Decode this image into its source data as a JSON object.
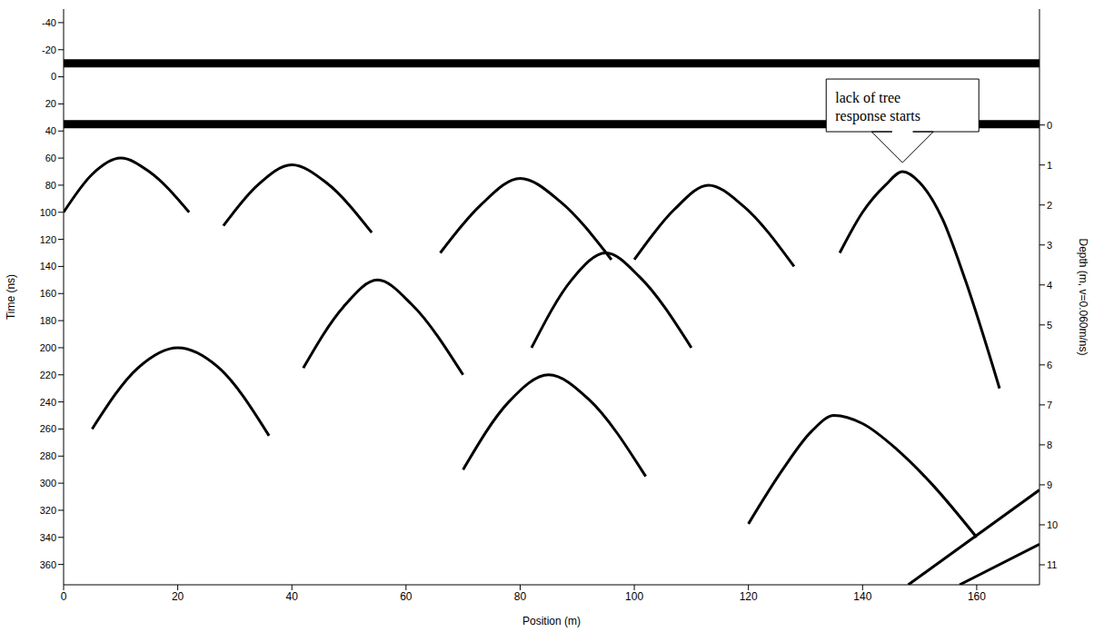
{
  "chart_data": {
    "type": "line",
    "x_label": "Position (m)",
    "y_label": "Time (ns)",
    "y2_label": "Depth (m, v=0.060m/ns)",
    "xlim": [
      0,
      171
    ],
    "xticks": [
      0,
      20,
      40,
      60,
      80,
      100,
      120,
      140,
      160
    ],
    "ylim": [
      -50,
      375
    ],
    "yticks": [
      -40,
      -20,
      0,
      20,
      40,
      60,
      80,
      100,
      120,
      140,
      160,
      180,
      200,
      220,
      240,
      260,
      280,
      300,
      320,
      340,
      360
    ],
    "y2lim": [
      -2.9,
      11.5
    ],
    "y2ticks": [
      0,
      1,
      2,
      3,
      4,
      5,
      6,
      7,
      8,
      9,
      10,
      11
    ],
    "grid": false,
    "annotations": [
      {
        "text": "lack of tree response starts",
        "x": 147,
        "y": 66
      }
    ],
    "series": [
      {
        "type": "band",
        "color": "#000000",
        "x": [
          0,
          171
        ],
        "values": [
          -10,
          -10
        ]
      },
      {
        "type": "band",
        "color": "#000000",
        "x": [
          0,
          171
        ],
        "values": [
          35,
          35
        ]
      },
      {
        "type": "line",
        "color": "#000000",
        "x": [
          136,
          140,
          144,
          147,
          150,
          154,
          158,
          164
        ],
        "values": [
          130,
          100,
          80,
          70,
          78,
          105,
          150,
          230
        ]
      },
      {
        "type": "line",
        "color": "#000000",
        "x": [
          120,
          126,
          131,
          135,
          140,
          146,
          152,
          160
        ],
        "values": [
          330,
          290,
          262,
          250,
          256,
          275,
          300,
          340
        ]
      },
      {
        "type": "line",
        "color": "#000000",
        "x": [
          0,
          5,
          10,
          15,
          22
        ],
        "values": [
          100,
          72,
          60,
          70,
          100
        ]
      },
      {
        "type": "line",
        "color": "#000000",
        "x": [
          28,
          34,
          40,
          46,
          54
        ],
        "values": [
          110,
          80,
          65,
          78,
          115
        ]
      },
      {
        "type": "line",
        "color": "#000000",
        "x": [
          66,
          73,
          80,
          87,
          96
        ],
        "values": [
          130,
          95,
          75,
          92,
          135
        ]
      },
      {
        "type": "line",
        "color": "#000000",
        "x": [
          100,
          107,
          113,
          119,
          128
        ],
        "values": [
          135,
          98,
          80,
          95,
          140
        ]
      },
      {
        "type": "line",
        "color": "#000000",
        "x": [
          82,
          89,
          95,
          101,
          110
        ],
        "values": [
          200,
          150,
          130,
          148,
          200
        ]
      },
      {
        "type": "line",
        "color": "#000000",
        "x": [
          42,
          49,
          55,
          61,
          70
        ],
        "values": [
          215,
          170,
          150,
          168,
          220
        ]
      },
      {
        "type": "line",
        "color": "#000000",
        "x": [
          5,
          13,
          20,
          27,
          36
        ],
        "values": [
          260,
          215,
          200,
          214,
          265
        ]
      },
      {
        "type": "line",
        "color": "#000000",
        "x": [
          70,
          78,
          85,
          92,
          102
        ],
        "values": [
          290,
          240,
          220,
          238,
          295
        ]
      },
      {
        "type": "line",
        "color": "#000000",
        "x": [
          148,
          171
        ],
        "values": [
          375,
          305
        ]
      },
      {
        "type": "line",
        "color": "#000000",
        "x": [
          157,
          171
        ],
        "values": [
          375,
          345
        ]
      }
    ]
  }
}
